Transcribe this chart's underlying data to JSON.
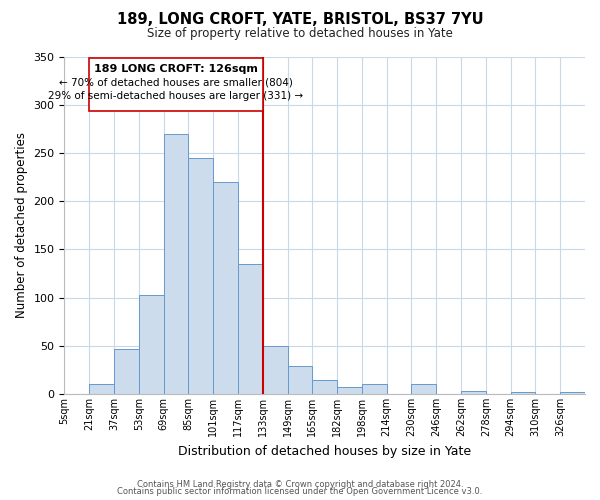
{
  "title": "189, LONG CROFT, YATE, BRISTOL, BS37 7YU",
  "subtitle": "Size of property relative to detached houses in Yate",
  "xlabel": "Distribution of detached houses by size in Yate",
  "ylabel": "Number of detached properties",
  "bar_labels": [
    "5sqm",
    "21sqm",
    "37sqm",
    "53sqm",
    "69sqm",
    "85sqm",
    "101sqm",
    "117sqm",
    "133sqm",
    "149sqm",
    "165sqm",
    "182sqm",
    "198sqm",
    "214sqm",
    "230sqm",
    "246sqm",
    "262sqm",
    "278sqm",
    "294sqm",
    "310sqm",
    "326sqm"
  ],
  "bar_heights": [
    0,
    10,
    47,
    103,
    270,
    245,
    220,
    135,
    50,
    29,
    15,
    7,
    10,
    0,
    10,
    0,
    3,
    0,
    2,
    0,
    2
  ],
  "bar_color": "#ccdcec",
  "bar_edge_color": "#6699cc",
  "ylim": [
    0,
    350
  ],
  "yticks": [
    0,
    50,
    100,
    150,
    200,
    250,
    300,
    350
  ],
  "vline_color": "#cc0000",
  "vline_index": 8,
  "annotation_title": "189 LONG CROFT: 126sqm",
  "annotation_line1": "← 70% of detached houses are smaller (804)",
  "annotation_line2": "29% of semi-detached houses are larger (331) →",
  "footer1": "Contains HM Land Registry data © Crown copyright and database right 2024.",
  "footer2": "Contains public sector information licensed under the Open Government Licence v3.0.",
  "background_color": "#ffffff",
  "grid_color": "#c8d8e8"
}
